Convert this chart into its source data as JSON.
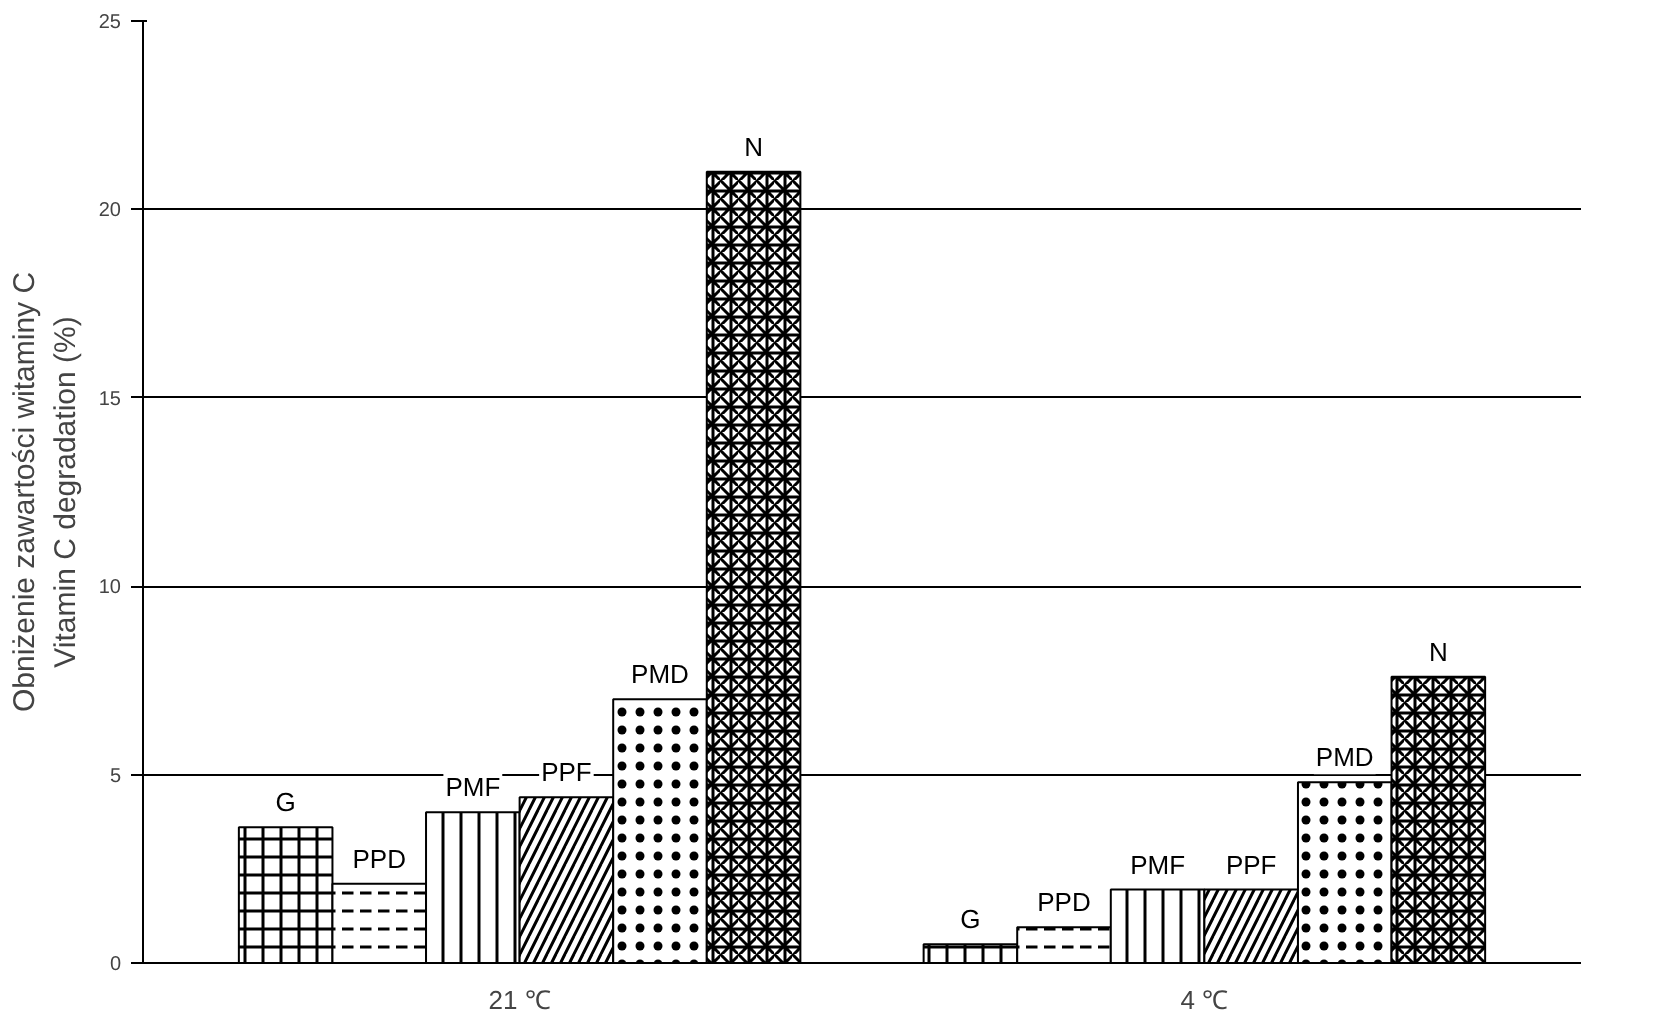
{
  "chart_data": {
    "type": "bar",
    "ylabel": "Obniżenie zawartości witaminy C\nVitamin C degradation (%)",
    "categories": [
      "21 ℃",
      "4 ℃"
    ],
    "series": [
      {
        "name": "G",
        "color": "#000000",
        "values": [
          3.6,
          0.5
        ]
      },
      {
        "name": "PPD",
        "color": "#000000",
        "values": [
          2.1,
          0.95
        ]
      },
      {
        "name": "PMF",
        "color": "#000000",
        "values": [
          4.0,
          1.95
        ]
      },
      {
        "name": "PPF",
        "color": "#000000",
        "values": [
          4.4,
          1.95
        ]
      },
      {
        "name": "PMD",
        "color": "#000000",
        "values": [
          7.0,
          4.8
        ]
      },
      {
        "name": "N",
        "color": "#000000",
        "values": [
          21.0,
          7.6
        ]
      }
    ],
    "ylim": [
      0,
      25
    ],
    "yticks": [
      0,
      5,
      10,
      15,
      20,
      25
    ],
    "grid": "y",
    "legend": false
  }
}
